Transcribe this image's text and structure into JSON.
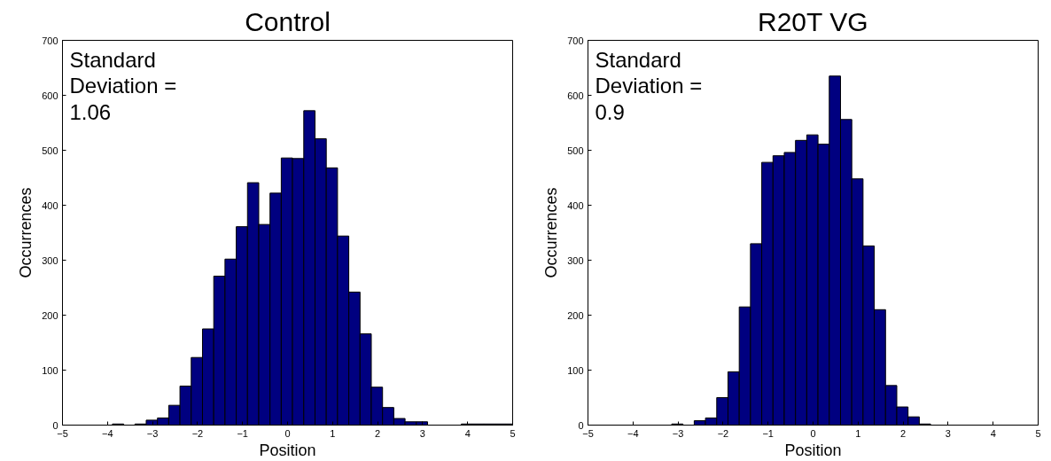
{
  "chart_data": [
    {
      "type": "histogram",
      "title": "Control",
      "xlabel": "Position",
      "ylabel": "Occurrences",
      "color": "#000080",
      "bins": [
        -3.89,
        -3.64,
        -3.39,
        -3.14,
        -2.89,
        -2.64,
        -2.39,
        -2.14,
        -1.89,
        -1.64,
        -1.39,
        -1.14,
        -0.89,
        -0.64,
        -0.39,
        -0.14,
        0.11,
        0.36,
        0.61,
        0.86,
        1.11,
        1.36,
        1.61,
        1.86,
        2.11,
        2.36,
        2.61,
        2.86,
        3.11,
        3.86,
        4.11,
        4.36,
        4.61,
        4.86,
        5.0
      ],
      "values": [
        2,
        0,
        2,
        9,
        13,
        36,
        71,
        123,
        175,
        271,
        302,
        361,
        441,
        365,
        422,
        486,
        485,
        572,
        521,
        468,
        344,
        242,
        166,
        69,
        32,
        12,
        6,
        6,
        0,
        2,
        2,
        2,
        2,
        2
      ],
      "xlim": [
        -5,
        5
      ],
      "ylim": [
        0,
        700
      ],
      "xticks": [
        -5,
        -4,
        -3,
        -2,
        -1,
        0,
        1,
        2,
        3,
        4,
        5
      ],
      "yticks": [
        0,
        100,
        200,
        300,
        400,
        500,
        600,
        700
      ],
      "annotations": [
        "Standard\nDeviation =\n1.06"
      ],
      "grid": false
    },
    {
      "type": "histogram",
      "title": "R20T VG",
      "xlabel": "Position",
      "ylabel": "Occurrences",
      "color": "#000080",
      "bins": [
        -3.14,
        -2.89,
        -2.64,
        -2.39,
        -2.14,
        -1.89,
        -1.64,
        -1.39,
        -1.14,
        -0.89,
        -0.64,
        -0.39,
        -0.14,
        0.11,
        0.36,
        0.61,
        0.86,
        1.11,
        1.36,
        1.61,
        1.86,
        2.11,
        2.36,
        2.61
      ],
      "values": [
        2,
        0,
        8,
        13,
        50,
        97,
        215,
        330,
        478,
        490,
        496,
        518,
        528,
        511,
        635,
        556,
        448,
        326,
        210,
        72,
        33,
        15,
        2
      ],
      "xlim": [
        -5,
        5
      ],
      "ylim": [
        0,
        700
      ],
      "xticks": [
        -5,
        -4,
        -3,
        -2,
        -1,
        0,
        1,
        2,
        3,
        4,
        5
      ],
      "yticks": [
        0,
        100,
        200,
        300,
        400,
        500,
        600,
        700
      ],
      "annotations": [
        "Standard\nDeviation =\n0.9"
      ],
      "grid": false
    }
  ]
}
